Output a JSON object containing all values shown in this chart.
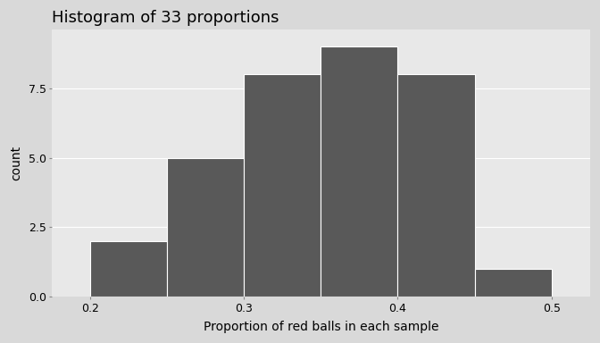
{
  "title": "Histogram of 33 proportions",
  "xlabel": "Proportion of red balls in each sample",
  "ylabel": "count",
  "bin_edges": [
    0.2,
    0.25,
    0.3,
    0.35,
    0.4,
    0.45,
    0.5
  ],
  "counts": [
    2,
    5,
    8,
    9,
    8,
    1
  ],
  "bar_color": "#595959",
  "bar_edgecolor": "#ffffff",
  "panel_background": "#e8e8e8",
  "outer_background": "#d9d9d9",
  "grid_color": "#ffffff",
  "xlim": [
    0.175,
    0.525
  ],
  "ylim": [
    0.0,
    9.6
  ],
  "yticks": [
    0.0,
    2.5,
    5.0,
    7.5
  ],
  "xticks": [
    0.2,
    0.3,
    0.4,
    0.5
  ],
  "title_fontsize": 13,
  "label_fontsize": 10,
  "tick_fontsize": 9
}
